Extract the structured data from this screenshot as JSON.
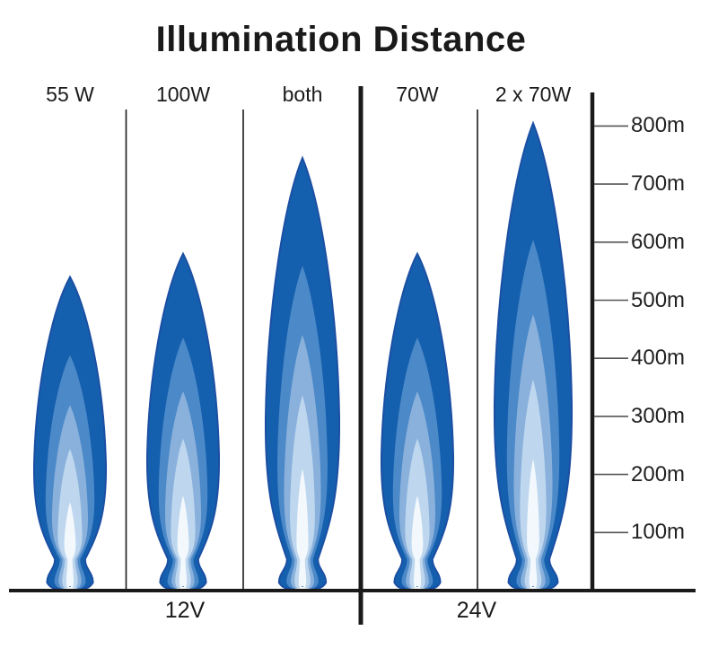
{
  "chart_data": {
    "type": "bar",
    "style": "pictorial light-beam cones representing illumination distance",
    "title": "Illumination Distance",
    "categories": [
      "55 W",
      "100W",
      "both",
      "70W",
      "2 x 70W"
    ],
    "values_m": [
      540,
      580,
      745,
      580,
      805
    ],
    "unit": "m",
    "groups": [
      {
        "label": "12V",
        "categories": [
          "55 W",
          "100W",
          "both"
        ]
      },
      {
        "label": "24V",
        "categories": [
          "70W",
          "2 x 70W"
        ]
      }
    ],
    "yticks_m": [
      100,
      200,
      300,
      400,
      500,
      600,
      700,
      800
    ],
    "ytick_label_suffix": "m",
    "ylim": [
      0,
      850
    ],
    "axis_side": "right",
    "grid": false,
    "legend": false
  },
  "colors": {
    "beam_layers": [
      "#1560ae",
      "#4c89c8",
      "#8ab1dc",
      "#bed7ee",
      "#f3f8fd"
    ],
    "beam_outline": "#1b4fa3",
    "axis_line": "#1a1a1a",
    "tick_line": "#555555",
    "text": "#1a1a1a",
    "background": "#ffffff"
  }
}
